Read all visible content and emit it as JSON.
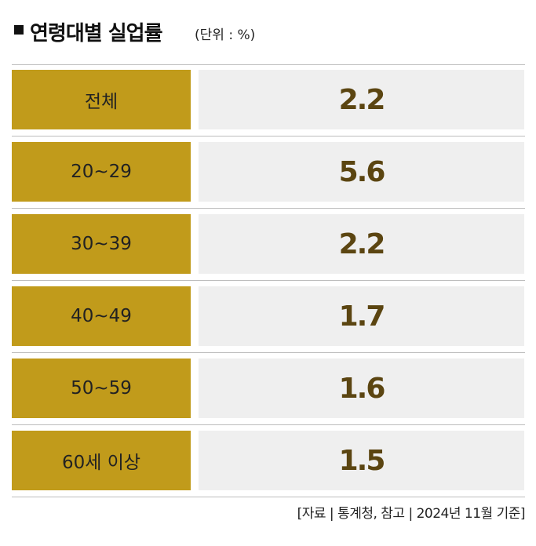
{
  "header": {
    "title": "연령대별 실업률",
    "unit": "(단위 : %)"
  },
  "table": {
    "rows": [
      [
        "전체",
        2.2
      ],
      [
        "20~29",
        5.6
      ],
      [
        "30~39",
        2.2
      ],
      [
        "40~49",
        1.7
      ],
      [
        "50~59",
        1.6
      ],
      [
        "60세 이상",
        1.5
      ]
    ]
  },
  "footer": {
    "source": "[자료 | 통계청, 참고 | 2024년 11월 기준]"
  }
}
